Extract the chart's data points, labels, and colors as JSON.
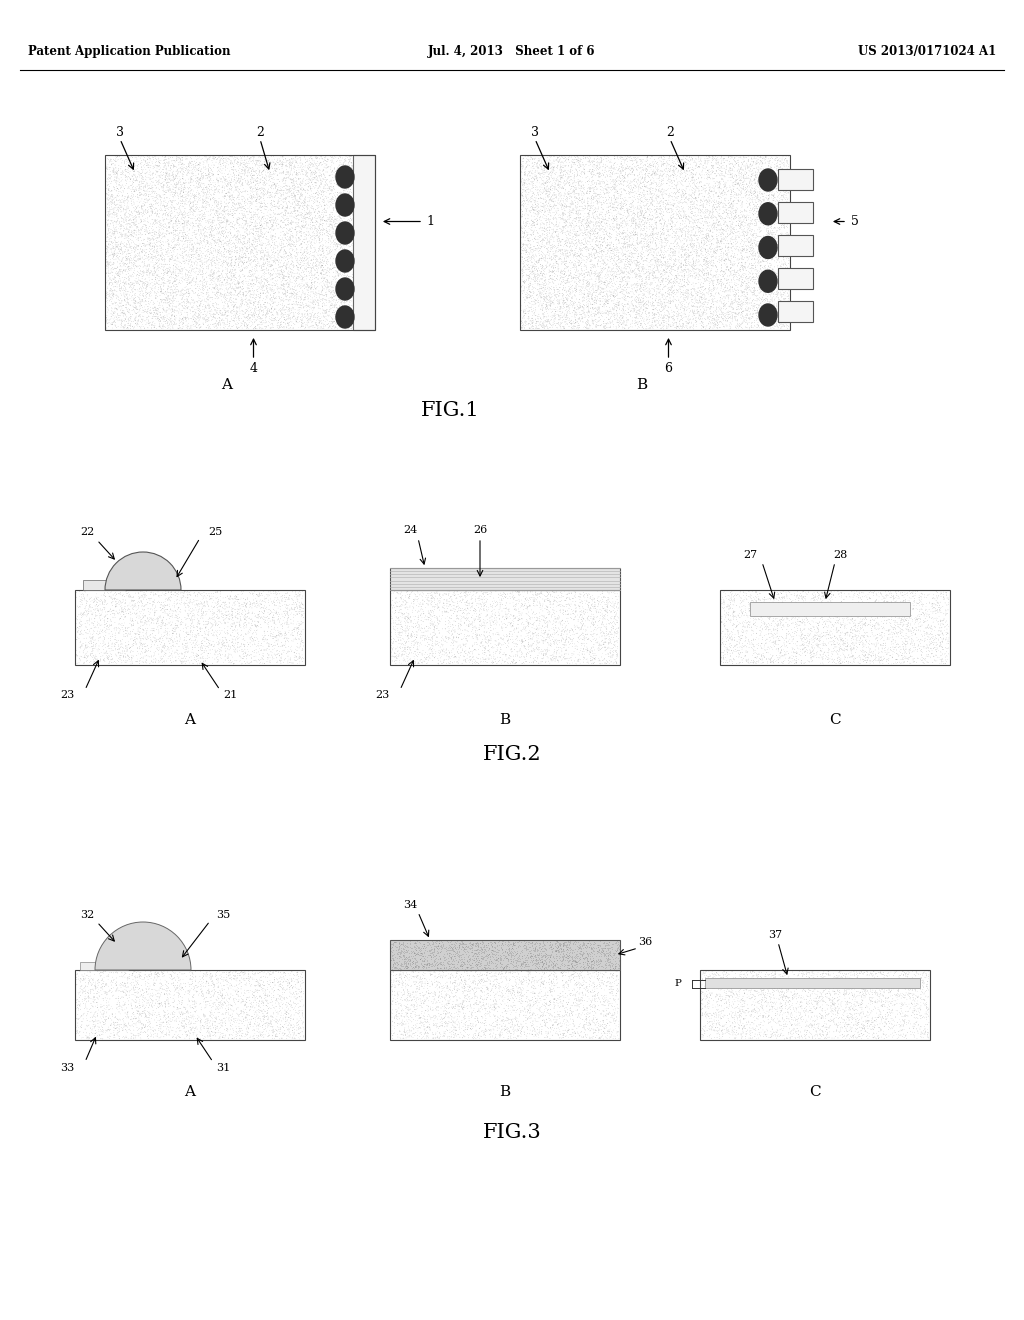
{
  "bg_color": "#ffffff",
  "header_left": "Patent Application Publication",
  "header_center": "Jul. 4, 2013   Sheet 1 of 6",
  "header_right": "US 2013/0171024 A1",
  "fig1_title": "FIG.1",
  "fig2_title": "FIG.2",
  "fig3_title": "FIG.3",
  "texture_colors": [
    "#b0a8a8",
    "#989090",
    "#c0b8b8",
    "#a09898",
    "#888080"
  ],
  "blob_color": "#303030",
  "gel_dome_color": "#d8d8d8",
  "gel_flat_color": "#e0e0e0",
  "white_strip_color": "#f8f8f8",
  "dotted_gel_color": "#c8c8c8"
}
